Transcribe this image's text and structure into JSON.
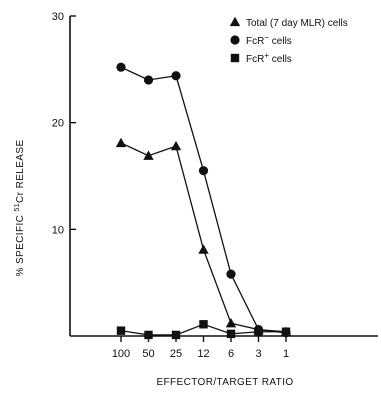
{
  "chart_data": {
    "type": "line",
    "title": "",
    "xlabel": "EFFECTOR/TARGET RATIO",
    "ylabel": "% SPECIFIC 51Cr RELEASE",
    "ylabel_parts": {
      "pre": "% SPECIFIC ",
      "sup": "51",
      "post": "Cr RELEASE"
    },
    "categories": [
      "100",
      "50",
      "25",
      "12",
      "6",
      "3",
      "1"
    ],
    "ylim": [
      0,
      30
    ],
    "yticks": [
      "10",
      "20",
      "30"
    ],
    "grid": false,
    "legend_position": "top-right",
    "series": [
      {
        "name": "Total (7 day MLR) cells",
        "label_pre": "Total (7 day MLR) cells",
        "label_sup": "",
        "label_post": "",
        "marker": "triangle",
        "values": [
          18.1,
          16.9,
          17.8,
          8.1,
          1.2,
          0.6,
          0.4
        ]
      },
      {
        "name": "FcR− cells",
        "label_pre": "FcR",
        "label_sup": "−",
        "label_post": " cells",
        "marker": "circle",
        "values": [
          25.2,
          24.0,
          24.4,
          15.5,
          5.8,
          0.6,
          0.3
        ]
      },
      {
        "name": "FcR+ cells",
        "label_pre": "FcR",
        "label_sup": "+",
        "label_post": " cells",
        "marker": "square",
        "values": [
          0.5,
          0.1,
          0.1,
          1.1,
          0.2,
          0.4,
          0.4
        ]
      }
    ]
  }
}
